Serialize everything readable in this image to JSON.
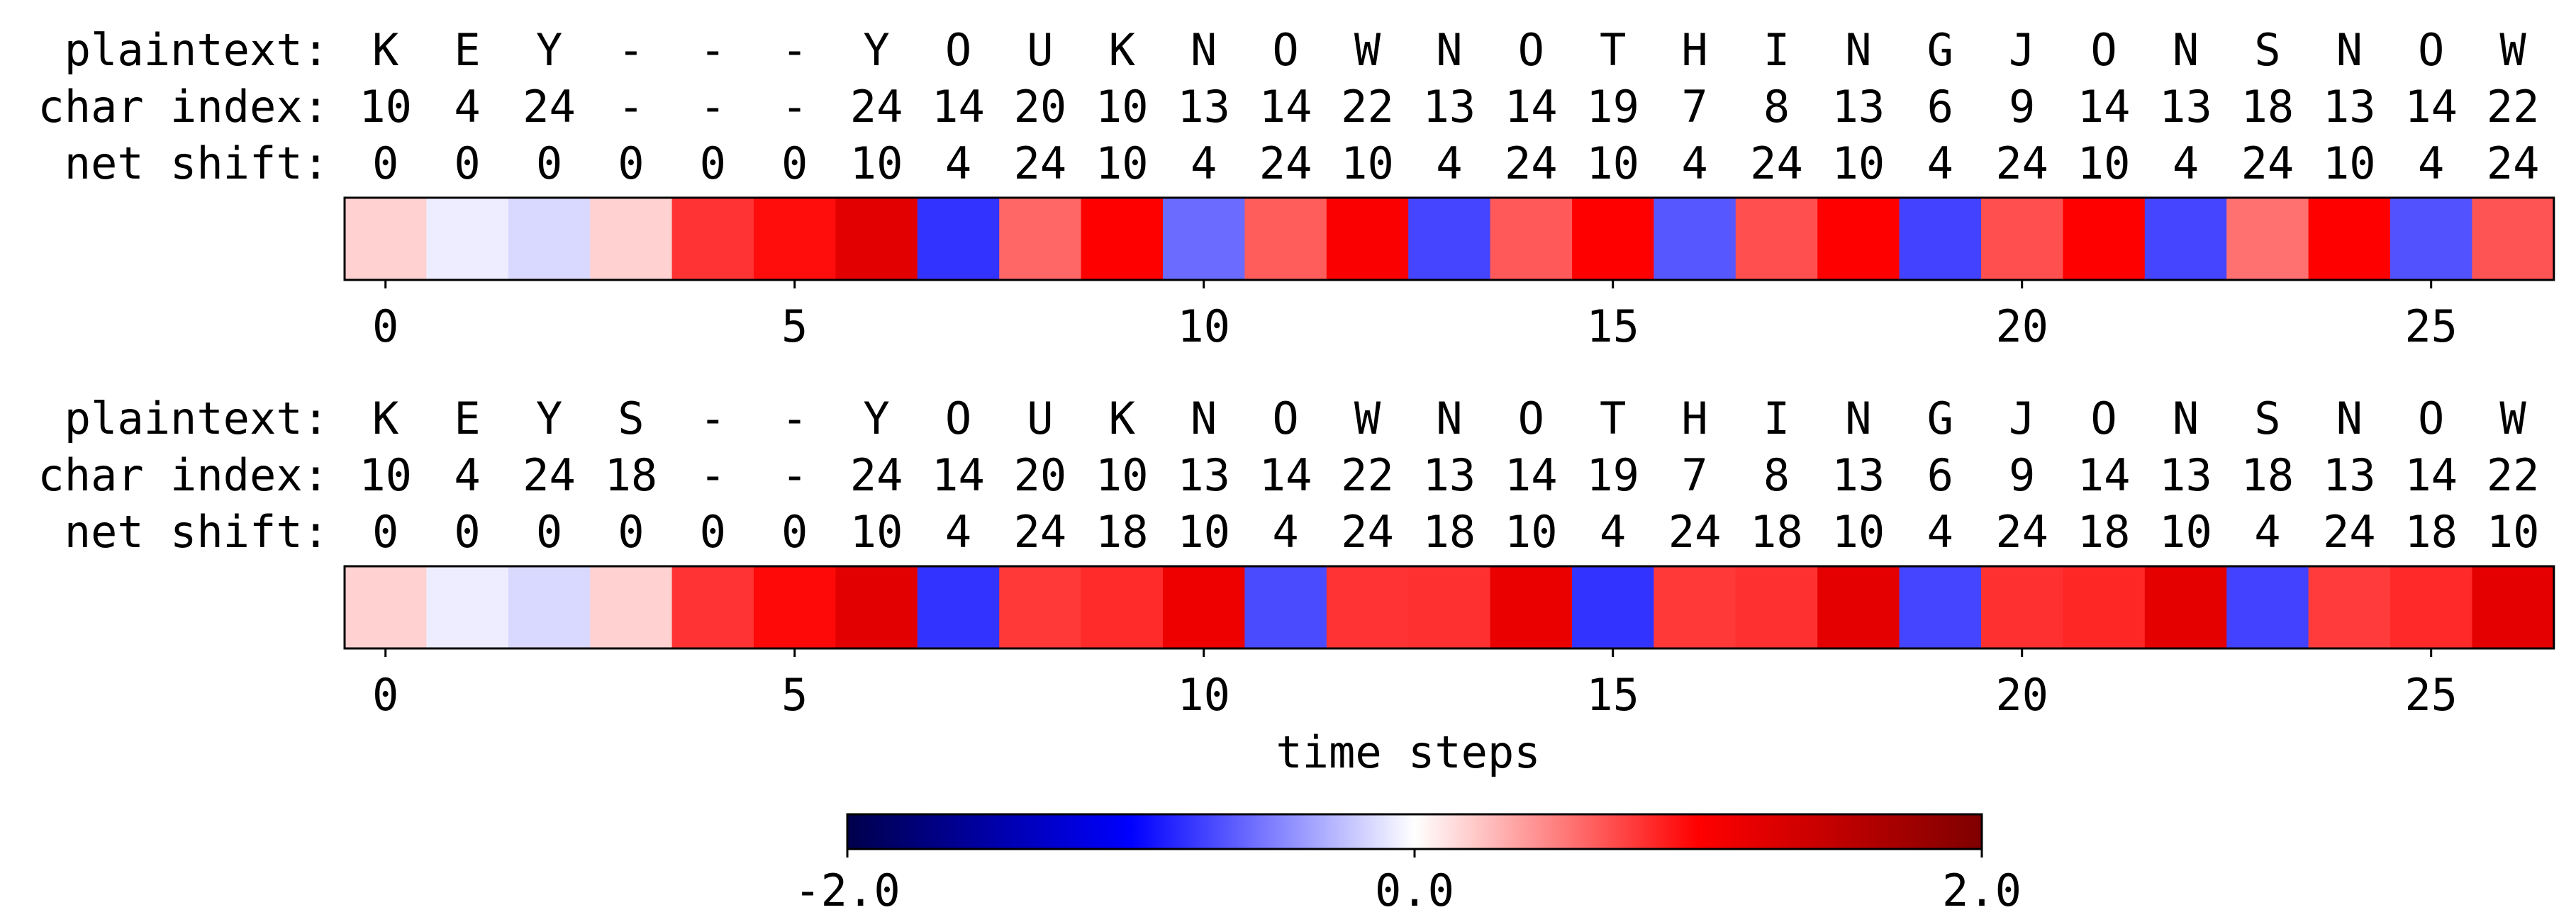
{
  "chart_data": {
    "type": "heatmap",
    "xlabel": "time steps",
    "colormap": "seismic",
    "vmin": -2.0,
    "vmax": 2.0,
    "colorbar_ticks": [
      "-2.0",
      "0.0",
      "2.0"
    ],
    "xticks": [
      0,
      5,
      10,
      15,
      20,
      25
    ],
    "row_labels": {
      "plaintext": "plaintext:",
      "char_index": "char index:",
      "net_shift": "net shift:"
    },
    "panels": [
      {
        "plaintext": [
          "K",
          "E",
          "Y",
          "-",
          "-",
          "-",
          "Y",
          "O",
          "U",
          "K",
          "N",
          "O",
          "W",
          "N",
          "O",
          "T",
          "H",
          "I",
          "N",
          "G",
          "J",
          "O",
          "N",
          "S",
          "N",
          "O",
          "W"
        ],
        "char_index": [
          "10",
          "4",
          "24",
          "-",
          "-",
          "-",
          "24",
          "14",
          "20",
          "10",
          "13",
          "14",
          "22",
          "13",
          "14",
          "19",
          "7",
          "8",
          "13",
          "6",
          "9",
          "14",
          "13",
          "18",
          "13",
          "14",
          "22"
        ],
        "net_shift": [
          "0",
          "0",
          "0",
          "0",
          "0",
          "0",
          "10",
          "4",
          "24",
          "10",
          "4",
          "24",
          "10",
          "4",
          "24",
          "10",
          "4",
          "24",
          "10",
          "4",
          "24",
          "10",
          "4",
          "24",
          "10",
          "4",
          "24"
        ],
        "values": [
          0.18,
          -0.07,
          -0.15,
          0.18,
          0.8,
          0.95,
          1.22,
          -0.8,
          0.6,
          1.0,
          -0.58,
          0.64,
          1.03,
          -0.73,
          0.65,
          1.0,
          -0.66,
          0.69,
          1.0,
          -0.74,
          0.69,
          1.0,
          -0.73,
          0.56,
          1.0,
          -0.68,
          0.67
        ]
      },
      {
        "plaintext": [
          "K",
          "E",
          "Y",
          "S",
          "-",
          "-",
          "Y",
          "O",
          "U",
          "K",
          "N",
          "O",
          "W",
          "N",
          "O",
          "T",
          "H",
          "I",
          "N",
          "G",
          "J",
          "O",
          "N",
          "S",
          "N",
          "O",
          "W"
        ],
        "char_index": [
          "10",
          "4",
          "24",
          "18",
          "-",
          "-",
          "24",
          "14",
          "20",
          "10",
          "13",
          "14",
          "22",
          "13",
          "14",
          "19",
          "7",
          "8",
          "13",
          "6",
          "9",
          "14",
          "13",
          "18",
          "13",
          "14",
          "22"
        ],
        "net_shift": [
          "0",
          "0",
          "0",
          "0",
          "0",
          "0",
          "10",
          "4",
          "24",
          "18",
          "10",
          "4",
          "24",
          "18",
          "10",
          "4",
          "24",
          "18",
          "10",
          "4",
          "24",
          "18",
          "10",
          "4",
          "24",
          "18",
          "10"
        ],
        "values": [
          0.18,
          -0.07,
          -0.15,
          0.18,
          0.8,
          0.97,
          1.22,
          -0.8,
          0.78,
          0.83,
          1.13,
          -0.71,
          0.8,
          0.81,
          1.16,
          -0.8,
          0.78,
          0.81,
          1.21,
          -0.73,
          0.81,
          0.85,
          1.2,
          -0.74,
          0.77,
          0.84,
          1.21
        ]
      }
    ]
  }
}
